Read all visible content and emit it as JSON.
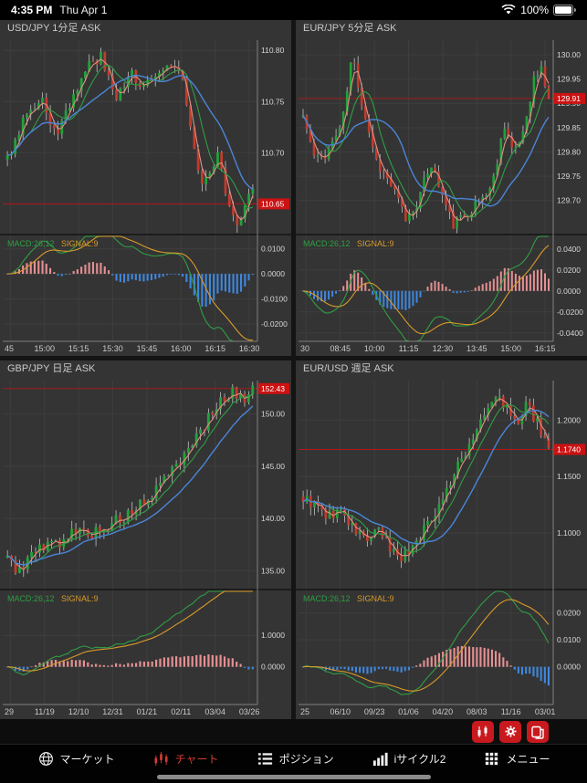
{
  "status_bar": {
    "time": "4:35 PM",
    "date": "Thu Apr 1",
    "battery": "100%"
  },
  "colors": {
    "panel_bg": "#343434",
    "grid": "#3e3e3e",
    "border": "#808080",
    "up": "#1fa33a",
    "down": "#c23b2e",
    "wick": "#c0c0c0",
    "red": "#cc1212",
    "ma_fast": "#e09080",
    "ma_mid": "#2f9e44",
    "ma_slow": "#4a86d8",
    "hist_pos": "#e59093",
    "hist_neg": "#3f87de",
    "macd_line": "#2f9e44",
    "signal_line": "#d89a2a",
    "tab_active": "#d23b34"
  },
  "macd_label": {
    "macd": "MACD:26,12",
    "signal": "SIGNAL:9"
  },
  "charts": [
    {
      "title": "USD/JPY 1分足 ASK",
      "seed": 3,
      "candles": 64,
      "price": {
        "min": 110.62,
        "max": 110.81,
        "ticks": [
          [
            110.8,
            "110.80"
          ],
          [
            110.75,
            "110.75"
          ],
          [
            110.7,
            "110.70"
          ]
        ],
        "current": [
          110.65,
          "110.65"
        ],
        "anchors": [
          [
            0,
            110.695
          ],
          [
            0.07,
            110.735
          ],
          [
            0.14,
            110.755
          ],
          [
            0.2,
            110.715
          ],
          [
            0.27,
            110.755
          ],
          [
            0.33,
            110.785
          ],
          [
            0.38,
            110.795
          ],
          [
            0.44,
            110.75
          ],
          [
            0.5,
            110.78
          ],
          [
            0.56,
            110.765
          ],
          [
            0.62,
            110.775
          ],
          [
            0.67,
            110.79
          ],
          [
            0.71,
            110.775
          ],
          [
            0.75,
            110.72
          ],
          [
            0.79,
            110.665
          ],
          [
            0.83,
            110.68
          ],
          [
            0.86,
            110.7
          ],
          [
            0.9,
            110.645
          ],
          [
            0.94,
            110.625
          ],
          [
            0.97,
            110.645
          ],
          [
            1,
            110.67
          ]
        ]
      },
      "macd_range": [
        -0.027,
        0.015
      ],
      "macd_ticks": [
        [
          0.01,
          "0.0100"
        ],
        [
          0,
          "0.0000"
        ],
        [
          -0.01,
          "-0.0100"
        ],
        [
          -0.02,
          "-0.0200"
        ]
      ],
      "x_labels": [
        "45",
        "15:00",
        "15:15",
        "15:30",
        "15:45",
        "16:00",
        "16:15",
        "16:30"
      ]
    },
    {
      "title": "EUR/JPY 5分足 ASK",
      "seed": 11,
      "candles": 68,
      "price": {
        "min": 129.63,
        "max": 130.03,
        "ticks": [
          [
            130.0,
            "130.00"
          ],
          [
            129.95,
            "129.95"
          ],
          [
            129.9,
            "129.90"
          ],
          [
            129.85,
            "129.85"
          ],
          [
            129.8,
            "129.80"
          ],
          [
            129.75,
            "129.75"
          ],
          [
            129.7,
            "129.70"
          ]
        ],
        "current": [
          129.91,
          "129.91"
        ],
        "anchors": [
          [
            0,
            129.875
          ],
          [
            0.05,
            129.78
          ],
          [
            0.1,
            129.8
          ],
          [
            0.16,
            129.86
          ],
          [
            0.2,
            130.0
          ],
          [
            0.24,
            129.9
          ],
          [
            0.3,
            129.78
          ],
          [
            0.36,
            129.73
          ],
          [
            0.42,
            129.66
          ],
          [
            0.47,
            129.7
          ],
          [
            0.52,
            129.78
          ],
          [
            0.56,
            129.72
          ],
          [
            0.61,
            129.65
          ],
          [
            0.66,
            129.67
          ],
          [
            0.72,
            129.7
          ],
          [
            0.77,
            129.73
          ],
          [
            0.82,
            129.86
          ],
          [
            0.86,
            129.79
          ],
          [
            0.9,
            129.85
          ],
          [
            0.94,
            129.95
          ],
          [
            0.97,
            129.97
          ],
          [
            1,
            129.91
          ]
        ]
      },
      "macd_range": [
        -0.048,
        0.052
      ],
      "macd_ticks": [
        [
          0.04,
          "0.0400"
        ],
        [
          0.02,
          "0.0200"
        ],
        [
          0,
          "0.0000"
        ],
        [
          -0.02,
          "-0.0200"
        ],
        [
          -0.04,
          "-0.0400"
        ]
      ],
      "x_labels": [
        "30",
        "08:45",
        "10:00",
        "11:15",
        "12:30",
        "13:45",
        "15:00",
        "16:15"
      ]
    },
    {
      "title": "GBP/JPY 日足 ASK",
      "seed": 5,
      "candles": 62,
      "price": {
        "min": 133.2,
        "max": 153.2,
        "ticks": [
          [
            150.0,
            "150.00"
          ],
          [
            145.0,
            "145.00"
          ],
          [
            140.0,
            "140.00"
          ],
          [
            135.0,
            "135.00"
          ]
        ],
        "current": [
          152.43,
          "152.43"
        ],
        "anchors": [
          [
            0,
            136.2
          ],
          [
            0.04,
            134.9
          ],
          [
            0.09,
            136.4
          ],
          [
            0.15,
            137.3
          ],
          [
            0.22,
            137.9
          ],
          [
            0.28,
            138.8
          ],
          [
            0.34,
            138.6
          ],
          [
            0.4,
            139.3
          ],
          [
            0.46,
            139.9
          ],
          [
            0.52,
            140.8
          ],
          [
            0.58,
            142.0
          ],
          [
            0.64,
            143.6
          ],
          [
            0.7,
            145.4
          ],
          [
            0.76,
            147.4
          ],
          [
            0.82,
            149.6
          ],
          [
            0.87,
            151.2
          ],
          [
            0.92,
            152.2
          ],
          [
            0.95,
            151.3
          ],
          [
            1,
            152.43
          ]
        ]
      },
      "macd_range": [
        -1.2,
        2.4
      ],
      "macd_ticks": [
        [
          1,
          "1.0000"
        ],
        [
          0,
          "0.0000"
        ]
      ],
      "x_labels": [
        "29",
        "11/19",
        "12/10",
        "12/31",
        "01/21",
        "02/11",
        "03/04",
        "03/26"
      ]
    },
    {
      "title": "EUR/USD 週足 ASK",
      "seed": 9,
      "candles": 66,
      "price": {
        "min": 1.05,
        "max": 1.235,
        "ticks": [
          [
            1.2,
            "1.2000"
          ],
          [
            1.15,
            "1.1500"
          ],
          [
            1.1,
            "1.1000"
          ]
        ],
        "current": [
          1.174,
          "1.1740"
        ],
        "anchors": [
          [
            0,
            1.131
          ],
          [
            0.05,
            1.124
          ],
          [
            0.1,
            1.114
          ],
          [
            0.15,
            1.121
          ],
          [
            0.2,
            1.104
          ],
          [
            0.26,
            1.094
          ],
          [
            0.31,
            1.101
          ],
          [
            0.36,
            1.085
          ],
          [
            0.41,
            1.079
          ],
          [
            0.46,
            1.093
          ],
          [
            0.51,
            1.109
          ],
          [
            0.56,
            1.128
          ],
          [
            0.62,
            1.153
          ],
          [
            0.67,
            1.176
          ],
          [
            0.72,
            1.196
          ],
          [
            0.77,
            1.216
          ],
          [
            0.8,
            1.221
          ],
          [
            0.84,
            1.204
          ],
          [
            0.88,
            1.195
          ],
          [
            0.91,
            1.212
          ],
          [
            0.95,
            1.201
          ],
          [
            1,
            1.174
          ]
        ]
      },
      "macd_range": [
        -0.014,
        0.028
      ],
      "macd_ticks": [
        [
          0.02,
          "0.0200"
        ],
        [
          0.01,
          "0.0100"
        ],
        [
          0,
          "0.0000"
        ]
      ],
      "x_labels": [
        "25",
        "06/10",
        "09/23",
        "01/06",
        "04/20",
        "08/03",
        "11/16",
        "03/01"
      ]
    }
  ],
  "fab": {
    "buttons": [
      {
        "name": "chart-style",
        "icon": "candlestick-icon"
      },
      {
        "name": "settings",
        "icon": "gear-icon"
      },
      {
        "name": "layouts",
        "icon": "multi-chart-icon"
      }
    ]
  },
  "tabbar": {
    "items": [
      {
        "label": "マーケット",
        "icon": "globe-icon",
        "active": false
      },
      {
        "label": "チャート",
        "icon": "candlestick-icon",
        "active": true
      },
      {
        "label": "ポジション",
        "icon": "list-icon",
        "active": false
      },
      {
        "label": "iサイクル2",
        "icon": "bar-chart-icon",
        "active": false
      },
      {
        "label": "メニュー",
        "icon": "grid-icon",
        "active": false
      }
    ]
  }
}
